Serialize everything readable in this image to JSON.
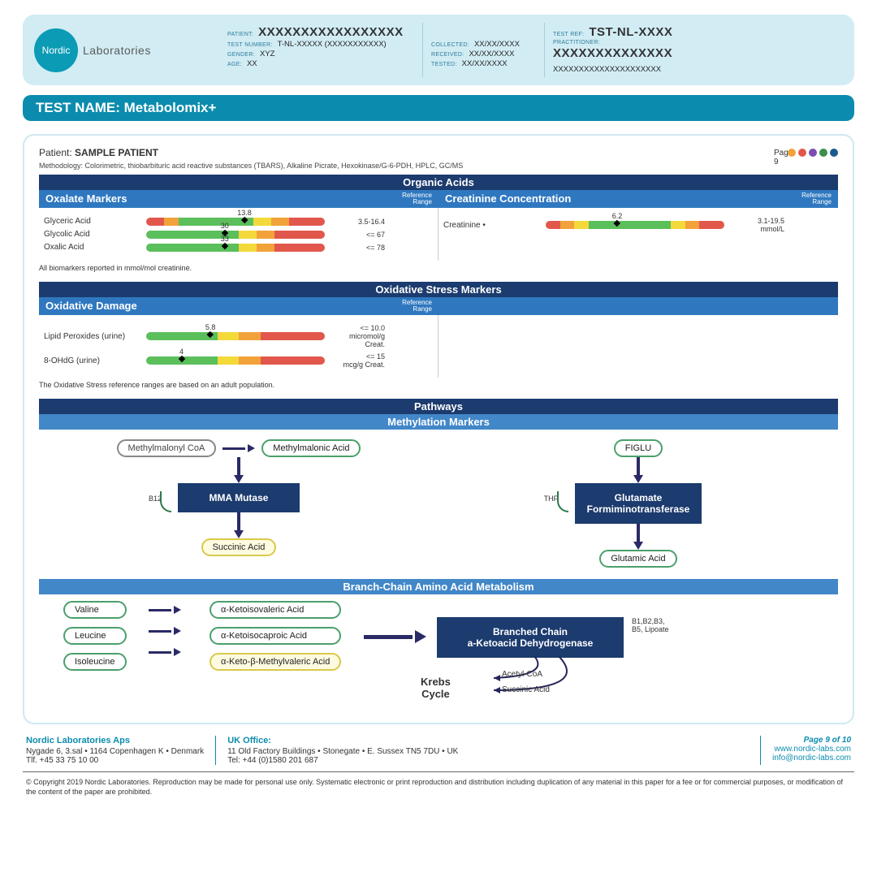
{
  "logo": {
    "circle_text": "Nordic",
    "label": "Laboratories",
    "circle_color": "#0b9bb5"
  },
  "header": {
    "patient_lbl": "PATIENT:",
    "patient": "XXXXXXXXXXXXXXXXX",
    "testnum_lbl": "TEST NUMBER:",
    "testnum": "T-NL-XXXXX (XXXXXXXXXXX)",
    "gender_lbl": "GENDER:",
    "gender": "XYZ",
    "age_lbl": "AGE:",
    "age": "XX",
    "collected_lbl": "COLLECTED:",
    "collected": "XX/XX/XXXX",
    "received_lbl": "RECEIVED:",
    "received": "XX/XX/XXXX",
    "tested_lbl": "TESTED:",
    "tested": "XX/XX/XXXX",
    "testref_lbl": "TEST REF:",
    "testref": "TST-NL-XXXX",
    "pract_lbl": "PRACTITIONER:",
    "pract": "XXXXXXXXXXXXXX",
    "addr": "XXXXXXXXXXXXXXXXXXXXX"
  },
  "testname": "TEST NAME: Metabolomix+",
  "patient_line_label": "Patient:",
  "patient_line_value": "SAMPLE PATIENT",
  "page_label": "Page 9",
  "dot_colors": [
    "#f2a23a",
    "#e2574c",
    "#7a4fb0",
    "#3a8f4a",
    "#1a5a8e"
  ],
  "methodology": "Methodology: Colorimetric, thiobarbituric acid reactive substances (TBARS), Alkaline Picrate, Hexokinase/G-6-PDH, HPLC, GC/MS",
  "colors": {
    "dark_header": "#1c3b6e",
    "sub_header": "#2f78c0",
    "mid_header": "#4287c8",
    "green": "#5bbf5b",
    "yellow": "#f4d93a",
    "orange": "#f2a23a",
    "red": "#e2574c"
  },
  "sections": {
    "organic": {
      "title": "Organic Acids",
      "left_title": "Oxalate Markers",
      "right_title": "Creatinine Concentration",
      "ref_label": "Reference\nRange",
      "note": "All biomarkers reported in mmol/mol creatinine.",
      "left_markers": [
        {
          "name": "Glyceric Acid",
          "value": "13.8",
          "range": "3.5-16.4",
          "segments": [
            [
              "#e2574c",
              0,
              10
            ],
            [
              "#f2a23a",
              10,
              18
            ],
            [
              "#5bbf5b",
              18,
              60
            ],
            [
              "#f4d93a",
              60,
              70
            ],
            [
              "#f2a23a",
              70,
              80
            ],
            [
              "#e2574c",
              80,
              100
            ]
          ],
          "pointer_pct": 55
        },
        {
          "name": "Glycolic Acid",
          "value": "30",
          "range": "<= 67",
          "segments": [
            [
              "#5bbf5b",
              0,
              52
            ],
            [
              "#f4d93a",
              52,
              62
            ],
            [
              "#f2a23a",
              62,
              72
            ],
            [
              "#e2574c",
              72,
              100
            ]
          ],
          "pointer_pct": 44
        },
        {
          "name": "Oxalic Acid",
          "value": "33",
          "range": "<= 78",
          "segments": [
            [
              "#5bbf5b",
              0,
              52
            ],
            [
              "#f4d93a",
              52,
              62
            ],
            [
              "#f2a23a",
              62,
              72
            ],
            [
              "#e2574c",
              72,
              100
            ]
          ],
          "pointer_pct": 44
        }
      ],
      "right_markers": [
        {
          "name": "Creatinine •",
          "value": "6.2",
          "range": "3.1-19.5",
          "unit": "mmol/L",
          "segments": [
            [
              "#e2574c",
              0,
              8
            ],
            [
              "#f2a23a",
              8,
              16
            ],
            [
              "#f4d93a",
              16,
              24
            ],
            [
              "#5bbf5b",
              24,
              70
            ],
            [
              "#f4d93a",
              70,
              78
            ],
            [
              "#f2a23a",
              78,
              86
            ],
            [
              "#e2574c",
              86,
              100
            ]
          ],
          "pointer_pct": 40
        }
      ]
    },
    "oxidative": {
      "title": "Oxidative Stress Markers",
      "left_title": "Oxidative Damage",
      "ref_label": "Reference\nRange",
      "note": "The Oxidative Stress reference ranges are based on an adult population.",
      "markers": [
        {
          "name": "Lipid Peroxides (urine)",
          "value": "5.8",
          "range": "<= 10.0",
          "unit": "micromol/g Creat.",
          "segments": [
            [
              "#5bbf5b",
              0,
              40
            ],
            [
              "#f4d93a",
              40,
              52
            ],
            [
              "#f2a23a",
              52,
              64
            ],
            [
              "#e2574c",
              64,
              100
            ]
          ],
          "pointer_pct": 36
        },
        {
          "name": "8-OHdG (urine)",
          "value": "4",
          "range": "<= 15",
          "unit": "mcg/g Creat.",
          "segments": [
            [
              "#5bbf5b",
              0,
              40
            ],
            [
              "#f4d93a",
              40,
              52
            ],
            [
              "#f2a23a",
              52,
              64
            ],
            [
              "#e2574c",
              64,
              100
            ]
          ],
          "pointer_pct": 20
        }
      ]
    },
    "pathways": {
      "title": "Pathways",
      "meth_title": "Methylation Markers",
      "bcaa_title": "Branch-Chain Amino Acid Metabolism",
      "left_flow": {
        "top": "Methylmalonyl CoA",
        "side": "Methylmalonic Acid",
        "cof": "B12",
        "enzyme": "MMA Mutase",
        "out": "Succinic Acid"
      },
      "right_flow": {
        "top": "FIGLU",
        "cof": "THF",
        "enzyme": "Glutamate\nFormiminotransferase",
        "out": "Glutamic Acid"
      },
      "bcaa": {
        "inputs": [
          "Valine",
          "Leucine",
          "Isoleucine"
        ],
        "mids": [
          "α-Ketoisovaleric Acid",
          "α-Ketoisocaproic Acid",
          "α-Keto-β-Methylvaleric Acid"
        ],
        "enzyme": "Branched Chain\na-Ketoacid Dehydrogenase",
        "cof": "B1,B2,B3,\nB5, Lipoate",
        "krebs": "Krebs\nCycle",
        "outs": [
          "Acetyl-CoA",
          "Succinic Acid"
        ]
      }
    }
  },
  "footer": {
    "co": "Nordic Laboratories Aps",
    "addr1": "Nygade 6, 3.sal • 1164 Copenhagen K • Denmark",
    "addr2": "Tlf. +45 33 75 10 00",
    "uk_head": "UK Office:",
    "uk1": "11 Old Factory Buildings • Stonegate • E. Sussex TN5 7DU • UK",
    "uk2": "Tel: +44 (0)1580 201 687",
    "page": "Page 9 of 10",
    "url": "www.nordic-labs.com",
    "email": "info@nordic-labs.com",
    "copyright": "© Copyright 2019 Nordic Laboratories. Reproduction may be made for personal use only. Systematic electronic or print reproduction and distribution including duplication of any material in this paper for a fee or for commercial purposes, or modification of the content of the paper are prohibited."
  }
}
